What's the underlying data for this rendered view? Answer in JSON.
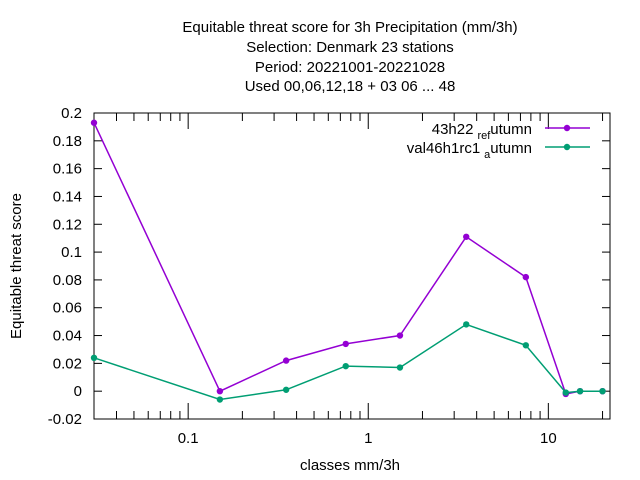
{
  "chart_data": {
    "type": "line",
    "title_lines": [
      "Equitable threat score  for 3h Precipitation (mm/3h)",
      "Selection: Denmark     23 stations",
      "Period: 20221001-20221028",
      "Used  00,06,12,18  + 03 06 ... 48"
    ],
    "xlabel": "classes mm/3h",
    "ylabel": "Equitable threat score",
    "xscale": "log",
    "xlim": [
      0.03,
      22
    ],
    "ylim": [
      -0.02,
      0.2
    ],
    "x_ticks": [
      0.1,
      1,
      10
    ],
    "x_tick_labels": [
      "0.1",
      "1",
      "10"
    ],
    "y_ticks": [
      -0.02,
      0,
      0.02,
      0.04,
      0.06,
      0.08,
      0.1,
      0.12,
      0.14,
      0.16,
      0.18,
      0.2
    ],
    "y_tick_labels": [
      "-0.02",
      "0",
      "0.02",
      "0.04",
      "0.06",
      "0.08",
      "0.1",
      "0.12",
      "0.14",
      "0.16",
      "0.18",
      "0.2"
    ],
    "grid": false,
    "legend_position": "top-right",
    "series": [
      {
        "name_main": "43h22",
        "name_sub": "ref",
        "name_sub2": "a",
        "name_tail": "utumn",
        "color": "#9400d3",
        "x": [
          0.03,
          0.15,
          0.35,
          0.75,
          1.5,
          3.5,
          7.5,
          12.5,
          15,
          20
        ],
        "y": [
          0.193,
          0.0,
          0.022,
          0.034,
          0.04,
          0.111,
          0.082,
          -0.002,
          0.0,
          0.0
        ]
      },
      {
        "name_main": "val46h1rc1",
        "name_sub": "",
        "name_sub2": "a",
        "name_tail": "utumn",
        "color": "#009e73",
        "x": [
          0.03,
          0.15,
          0.35,
          0.75,
          1.5,
          3.5,
          7.5,
          12.5,
          15,
          20
        ],
        "y": [
          0.024,
          -0.006,
          0.001,
          0.018,
          0.017,
          0.048,
          0.033,
          -0.001,
          0.0,
          0.0
        ]
      }
    ]
  }
}
